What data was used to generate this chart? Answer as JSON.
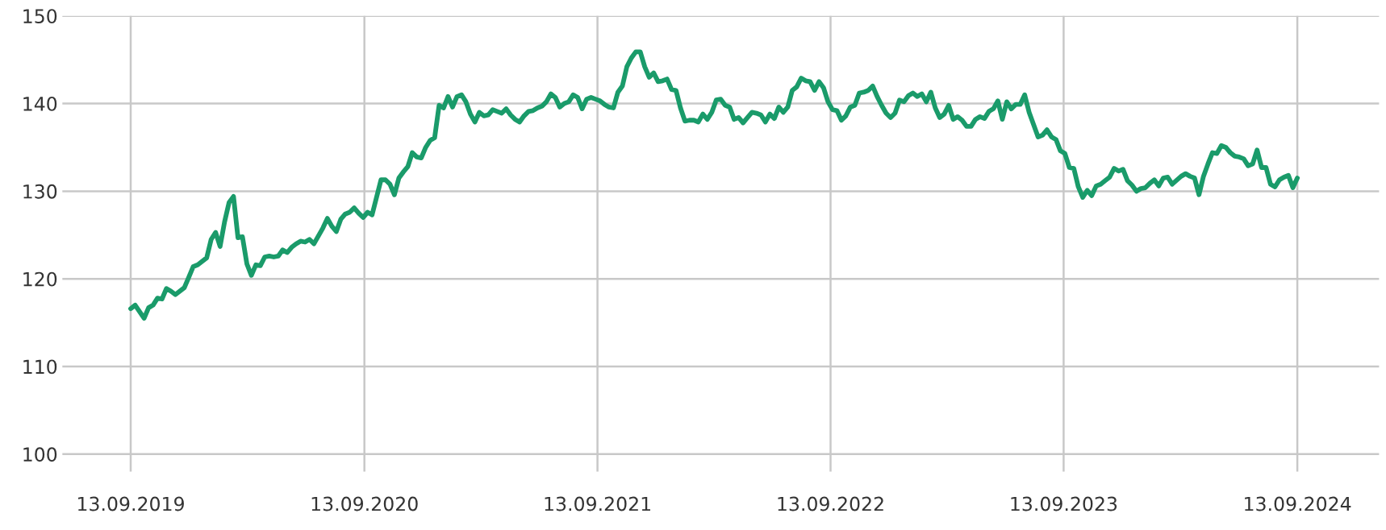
{
  "chart_data": {
    "type": "line",
    "xlim": [
      "2019-05-29",
      "2025-01-19"
    ],
    "ylim": [
      98,
      150
    ],
    "xticks": [
      {
        "value": "2019-09-13",
        "label": "13.09.2019"
      },
      {
        "value": "2020-09-13",
        "label": "13.09.2020"
      },
      {
        "value": "2021-09-13",
        "label": "13.09.2021"
      },
      {
        "value": "2022-09-13",
        "label": "13.09.2022"
      },
      {
        "value": "2023-09-13",
        "label": "13.09.2023"
      },
      {
        "value": "2024-09-13",
        "label": "13.09.2024"
      }
    ],
    "yticks": [
      100,
      110,
      120,
      130,
      140,
      150
    ],
    "grid": true,
    "marker": "none",
    "line_style": "solid",
    "series": [
      {
        "color": "#1a9b6a",
        "x": [
          "2019-09-13",
          "2019-09-20",
          "2019-10-04",
          "2019-10-11",
          "2019-10-18",
          "2019-10-25",
          "2019-11-01",
          "2019-11-08",
          "2019-11-15",
          "2019-11-22",
          "2019-12-06",
          "2019-12-13",
          "2019-12-20",
          "2019-12-27",
          "2020-01-10",
          "2020-01-17",
          "2020-01-24",
          "2020-01-31",
          "2020-02-07",
          "2020-02-14",
          "2020-02-21",
          "2020-02-28",
          "2020-03-06",
          "2020-03-13",
          "2020-03-20",
          "2020-03-27",
          "2020-04-03",
          "2020-04-10",
          "2020-04-17",
          "2020-04-24",
          "2020-05-01",
          "2020-05-08",
          "2020-05-15",
          "2020-05-22",
          "2020-05-29",
          "2020-06-05",
          "2020-06-12",
          "2020-06-19",
          "2020-06-26",
          "2020-07-10",
          "2020-07-17",
          "2020-07-24",
          "2020-07-31",
          "2020-08-07",
          "2020-08-14",
          "2020-08-21",
          "2020-08-28",
          "2020-09-04",
          "2020-09-11",
          "2020-09-18",
          "2020-09-25",
          "2020-10-02",
          "2020-10-09",
          "2020-10-16",
          "2020-10-23",
          "2020-10-30",
          "2020-11-06",
          "2020-11-13",
          "2020-11-20",
          "2020-11-27",
          "2020-12-04",
          "2020-12-11",
          "2020-12-18",
          "2020-12-25",
          "2021-01-01",
          "2021-01-08",
          "2021-01-15",
          "2021-01-22",
          "2021-01-29",
          "2021-02-05",
          "2021-02-12",
          "2021-02-19",
          "2021-02-26",
          "2021-03-05",
          "2021-03-12",
          "2021-03-19",
          "2021-03-26",
          "2021-04-02",
          "2021-04-09",
          "2021-04-16",
          "2021-04-23",
          "2021-04-30",
          "2021-05-07",
          "2021-05-14",
          "2021-05-21",
          "2021-05-28",
          "2021-06-04",
          "2021-06-11",
          "2021-06-18",
          "2021-06-25",
          "2021-07-02",
          "2021-07-09",
          "2021-07-16",
          "2021-07-23",
          "2021-07-30",
          "2021-08-06",
          "2021-08-13",
          "2021-08-20",
          "2021-08-27",
          "2021-09-03",
          "2021-09-10",
          "2021-09-17",
          "2021-09-24",
          "2021-10-01",
          "2021-10-08",
          "2021-10-15",
          "2021-10-22",
          "2021-10-29",
          "2021-11-05",
          "2021-11-12",
          "2021-11-19",
          "2021-11-26",
          "2021-12-03",
          "2021-12-10",
          "2021-12-17",
          "2021-12-24",
          "2021-12-31",
          "2022-01-07",
          "2022-01-14",
          "2022-01-21",
          "2022-01-28",
          "2022-02-04",
          "2022-02-11",
          "2022-02-18",
          "2022-02-25",
          "2022-03-04",
          "2022-03-11",
          "2022-03-18",
          "2022-03-25",
          "2022-04-01",
          "2022-04-08",
          "2022-04-15",
          "2022-04-22",
          "2022-04-29",
          "2022-05-06",
          "2022-05-13",
          "2022-05-20",
          "2022-05-27",
          "2022-06-03",
          "2022-06-10",
          "2022-06-17",
          "2022-06-24",
          "2022-07-01",
          "2022-07-08",
          "2022-07-15",
          "2022-07-22",
          "2022-07-29",
          "2022-08-05",
          "2022-08-12",
          "2022-08-19",
          "2022-08-26",
          "2022-09-02",
          "2022-09-09",
          "2022-09-16",
          "2022-09-23",
          "2022-09-30",
          "2022-10-07",
          "2022-10-14",
          "2022-10-21",
          "2022-10-28",
          "2022-11-04",
          "2022-11-11",
          "2022-11-18",
          "2022-11-25",
          "2022-12-02",
          "2022-12-09",
          "2022-12-16",
          "2022-12-23",
          "2022-12-30",
          "2023-01-06",
          "2023-01-13",
          "2023-01-20",
          "2023-01-27",
          "2023-02-03",
          "2023-02-10",
          "2023-02-17",
          "2023-02-24",
          "2023-03-03",
          "2023-03-10",
          "2023-03-17",
          "2023-03-24",
          "2023-03-31",
          "2023-04-07",
          "2023-04-14",
          "2023-04-21",
          "2023-04-28",
          "2023-05-05",
          "2023-05-12",
          "2023-05-19",
          "2023-05-26",
          "2023-06-02",
          "2023-06-09",
          "2023-06-16",
          "2023-06-23",
          "2023-06-30",
          "2023-07-07",
          "2023-07-14",
          "2023-07-21",
          "2023-07-28",
          "2023-08-04",
          "2023-08-11",
          "2023-08-18",
          "2023-08-25",
          "2023-09-01",
          "2023-09-08",
          "2023-09-15",
          "2023-09-22",
          "2023-09-29",
          "2023-10-06",
          "2023-10-13",
          "2023-10-20",
          "2023-10-27",
          "2023-11-03",
          "2023-11-10",
          "2023-11-17",
          "2023-11-24",
          "2023-12-01",
          "2023-12-08",
          "2023-12-15",
          "2023-12-22",
          "2023-12-29",
          "2024-01-05",
          "2024-01-12",
          "2024-01-19",
          "2024-01-26",
          "2024-02-02",
          "2024-02-09",
          "2024-02-16",
          "2024-02-23",
          "2024-03-01",
          "2024-03-15",
          "2024-03-22",
          "2024-03-29",
          "2024-04-05",
          "2024-04-12",
          "2024-04-19",
          "2024-04-26",
          "2024-05-03",
          "2024-05-10",
          "2024-05-17",
          "2024-05-24",
          "2024-05-31",
          "2024-06-07",
          "2024-06-14",
          "2024-06-21",
          "2024-06-28",
          "2024-07-05",
          "2024-07-12",
          "2024-07-19",
          "2024-07-26",
          "2024-08-02",
          "2024-08-09",
          "2024-08-16",
          "2024-08-23",
          "2024-08-30",
          "2024-09-06",
          "2024-09-13"
        ],
        "values": [
          116.6,
          117.0,
          115.5,
          116.7,
          117.0,
          117.8,
          117.7,
          118.9,
          118.6,
          118.2,
          119.0,
          120.2,
          121.4,
          121.6,
          122.4,
          124.5,
          125.3,
          123.7,
          126.5,
          128.7,
          129.4,
          124.7,
          124.8,
          121.7,
          120.4,
          121.6,
          121.5,
          122.5,
          122.6,
          122.5,
          122.6,
          123.3,
          123.0,
          123.6,
          124.0,
          124.3,
          124.2,
          124.5,
          124.0,
          125.8,
          126.9,
          126.0,
          125.4,
          126.8,
          127.4,
          127.6,
          128.1,
          127.5,
          127.0,
          127.6,
          127.3,
          129.3,
          131.3,
          131.3,
          130.8,
          129.6,
          131.5,
          132.2,
          132.8,
          134.4,
          133.9,
          133.8,
          135.0,
          135.8,
          136.1,
          139.8,
          139.5,
          140.8,
          139.6,
          140.8,
          141.0,
          140.2,
          138.8,
          137.9,
          139.0,
          138.6,
          138.7,
          139.3,
          139.1,
          138.9,
          139.4,
          138.7,
          138.2,
          137.9,
          138.6,
          139.1,
          139.2,
          139.5,
          139.7,
          140.2,
          141.1,
          140.7,
          139.6,
          140.0,
          140.2,
          141.0,
          140.7,
          139.4,
          140.5,
          140.7,
          140.5,
          140.3,
          139.9,
          139.6,
          139.5,
          141.3,
          142.0,
          144.2,
          145.2,
          145.9,
          145.9,
          144.2,
          143.0,
          143.5,
          142.5,
          142.6,
          142.8,
          141.6,
          141.5,
          139.5,
          138.0,
          138.1,
          138.1,
          137.9,
          138.8,
          138.2,
          139.0,
          140.4,
          140.5,
          139.8,
          139.6,
          138.2,
          138.4,
          137.8,
          138.4,
          139.0,
          138.9,
          138.7,
          137.9,
          138.8,
          138.3,
          139.6,
          139.0,
          139.6,
          141.5,
          141.9,
          142.9,
          142.6,
          142.5,
          141.5,
          142.5,
          141.8,
          140.2,
          139.3,
          139.2,
          138.1,
          138.6,
          139.6,
          139.8,
          141.2,
          141.3,
          141.5,
          142.0,
          140.8,
          139.8,
          138.9,
          138.4,
          138.9,
          140.4,
          140.2,
          140.9,
          141.2,
          140.8,
          141.1,
          140.2,
          141.3,
          139.5,
          138.4,
          138.8,
          139.8,
          138.2,
          138.5,
          138.1,
          137.4,
          137.4,
          138.2,
          138.5,
          138.3,
          139.1,
          139.4,
          140.3,
          138.2,
          140.2,
          139.4,
          139.9,
          139.9,
          141.0,
          139.0,
          137.6,
          136.2,
          136.4,
          137.0,
          136.2,
          135.9,
          134.6,
          134.3,
          132.7,
          132.6,
          130.5,
          129.3,
          130.1,
          129.5,
          130.6,
          130.8,
          131.2,
          131.6,
          132.6,
          132.3,
          132.5,
          131.2,
          130.7,
          130.0,
          130.3,
          130.4,
          130.9,
          131.3,
          130.6,
          131.5,
          131.6,
          130.8,
          131.7,
          132.0,
          131.7,
          131.5,
          129.6,
          131.7,
          133.1,
          134.4,
          134.3,
          135.2,
          135.0,
          134.4,
          134.0,
          133.9,
          133.7,
          132.9,
          133.1,
          134.7,
          132.7,
          132.7,
          130.8,
          130.5,
          131.3,
          131.6,
          131.8,
          130.4,
          131.5
        ]
      }
    ]
  }
}
